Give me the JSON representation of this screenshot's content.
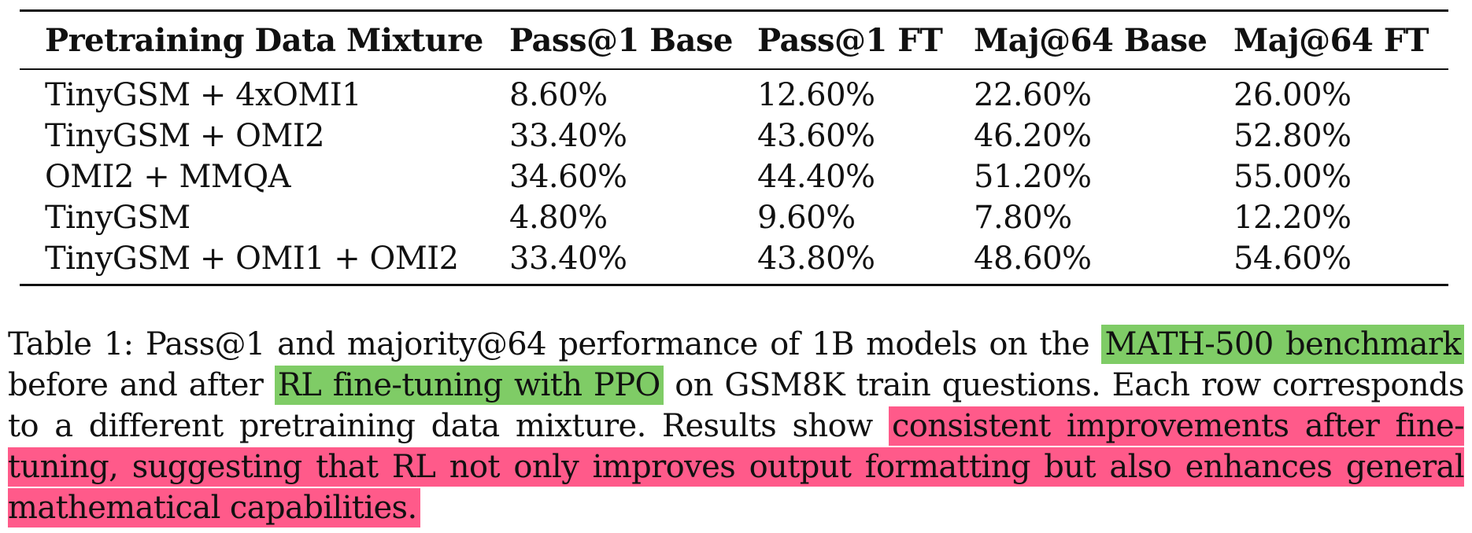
{
  "table": {
    "headers": [
      "Pretraining Data Mixture",
      "Pass@1 Base",
      "Pass@1 FT",
      "Maj@64 Base",
      "Maj@64 FT"
    ],
    "rows": [
      [
        "TinyGSM + 4xOMI1",
        "8.60%",
        "12.60%",
        "22.60%",
        "26.00%"
      ],
      [
        "TinyGSM + OMI2",
        "33.40%",
        "43.60%",
        "46.20%",
        "52.80%"
      ],
      [
        "OMI2 + MMQA",
        "34.60%",
        "44.40%",
        "51.20%",
        "55.00%"
      ],
      [
        "TinyGSM",
        "4.80%",
        "9.60%",
        "7.80%",
        "12.20%"
      ],
      [
        "TinyGSM + OMI1 + OMI2",
        "33.40%",
        "43.80%",
        "48.60%",
        "54.60%"
      ]
    ]
  },
  "caption": {
    "seg1": "Table 1: Pass@1 and majority@64 performance of 1B models on the ",
    "highlight1": "MATH-500 benchmark",
    "seg2": " before and after ",
    "highlight2": "RL fine-tuning with PPO",
    "seg3": " on GSM8K train questions. Each row corresponds to a different pretraining data mixture. Results show ",
    "highlight3": "consistent improvements after fine-tuning, suggesting that RL not only improves output formatting but also enhances general mathematical capabilities."
  },
  "colors": {
    "highlight_green": "#7fcc66",
    "highlight_pink": "#ff5a8a"
  }
}
